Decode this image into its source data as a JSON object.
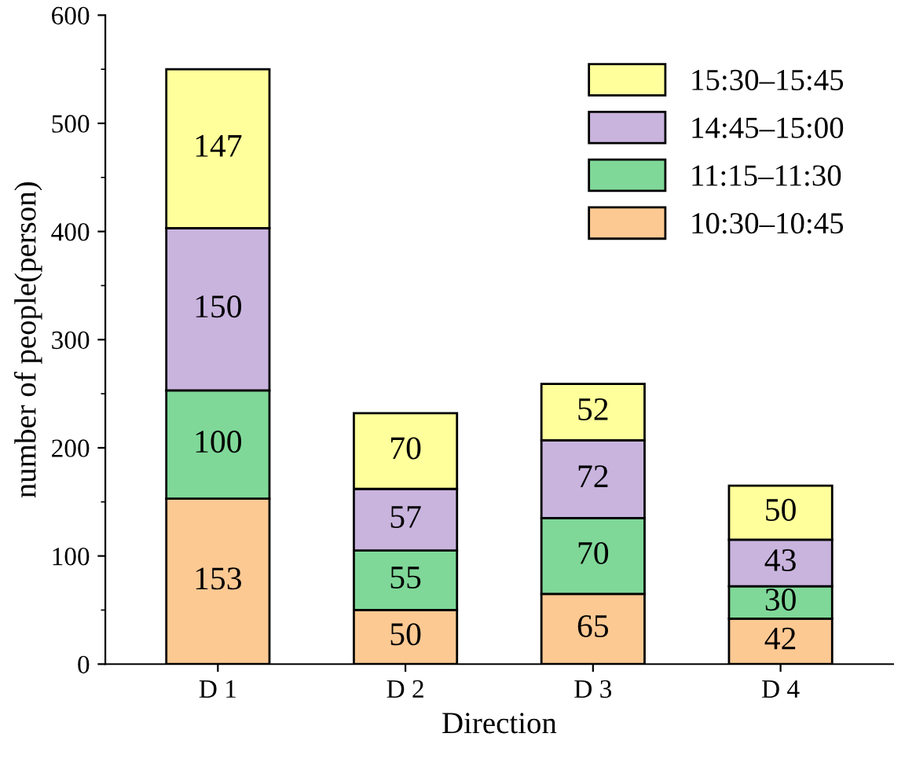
{
  "chart_data": {
    "type": "bar",
    "stacked": true,
    "xlabel": "Direction",
    "ylabel": "number of people(person)",
    "categories": [
      "D 1",
      "D 2",
      "D 3",
      "D 4"
    ],
    "series": [
      {
        "name": "10:30–10:45",
        "color": "#fdc993",
        "values": [
          153,
          50,
          65,
          42
        ]
      },
      {
        "name": "11:15–11:30",
        "color": "#7fd898",
        "values": [
          100,
          55,
          70,
          30
        ]
      },
      {
        "name": "14:45–15:00",
        "color": "#c9b4de",
        "values": [
          150,
          57,
          72,
          43
        ]
      },
      {
        "name": "15:30–15:45",
        "color": "#ffff9b",
        "values": [
          147,
          70,
          52,
          50
        ]
      }
    ],
    "ylim": [
      0,
      600
    ],
    "yticks": [
      0,
      100,
      200,
      300,
      400,
      500,
      600
    ],
    "data_labels": true,
    "legend": "top right",
    "grid": false
  }
}
